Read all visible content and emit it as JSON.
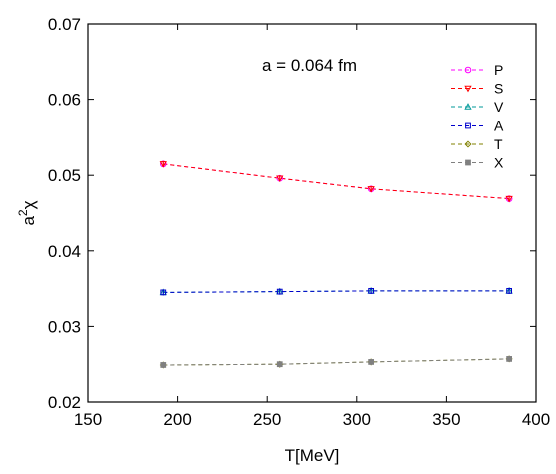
{
  "chart_data": {
    "type": "line",
    "title": "",
    "xlabel": "T[MeV]",
    "ylabel_base": "a",
    "ylabel_sup": "2",
    "ylabel_tail": "χ",
    "annotation": "a = 0.064 fm",
    "xlim": [
      150,
      400
    ],
    "ylim": [
      0.02,
      0.07
    ],
    "xticks": [
      150,
      200,
      250,
      300,
      350,
      400
    ],
    "yticks": [
      0.02,
      0.03,
      0.04,
      0.05,
      0.06,
      0.07
    ],
    "xtick_labels": [
      "150",
      "200",
      "250",
      "300",
      "350",
      "400"
    ],
    "ytick_labels": [
      "0.02",
      "0.03",
      "0.04",
      "0.05",
      "0.06",
      "0.07"
    ],
    "legend_position": "top-right",
    "x": [
      192,
      257,
      308,
      385
    ],
    "series": [
      {
        "name": "P",
        "color": "#ff00ff",
        "marker": "circle",
        "values": [
          0.0515,
          0.0496,
          0.0482,
          0.0469
        ]
      },
      {
        "name": "S",
        "color": "#ff0000",
        "marker": "triangle-down",
        "values": [
          0.0515,
          0.0496,
          0.0482,
          0.0469
        ]
      },
      {
        "name": "V",
        "color": "#009999",
        "marker": "triangle-up",
        "values": [
          0.0345,
          0.0346,
          0.0347,
          0.0347
        ]
      },
      {
        "name": "A",
        "color": "#0000cc",
        "marker": "square",
        "values": [
          0.0345,
          0.0346,
          0.0347,
          0.0347
        ]
      },
      {
        "name": "T",
        "color": "#808000",
        "marker": "diamond",
        "values": [
          0.0249,
          0.025,
          0.0253,
          0.0257
        ]
      },
      {
        "name": "X",
        "color": "#808080",
        "marker": "filled-square",
        "values": [
          0.0249,
          0.025,
          0.0253,
          0.0257
        ]
      }
    ]
  }
}
